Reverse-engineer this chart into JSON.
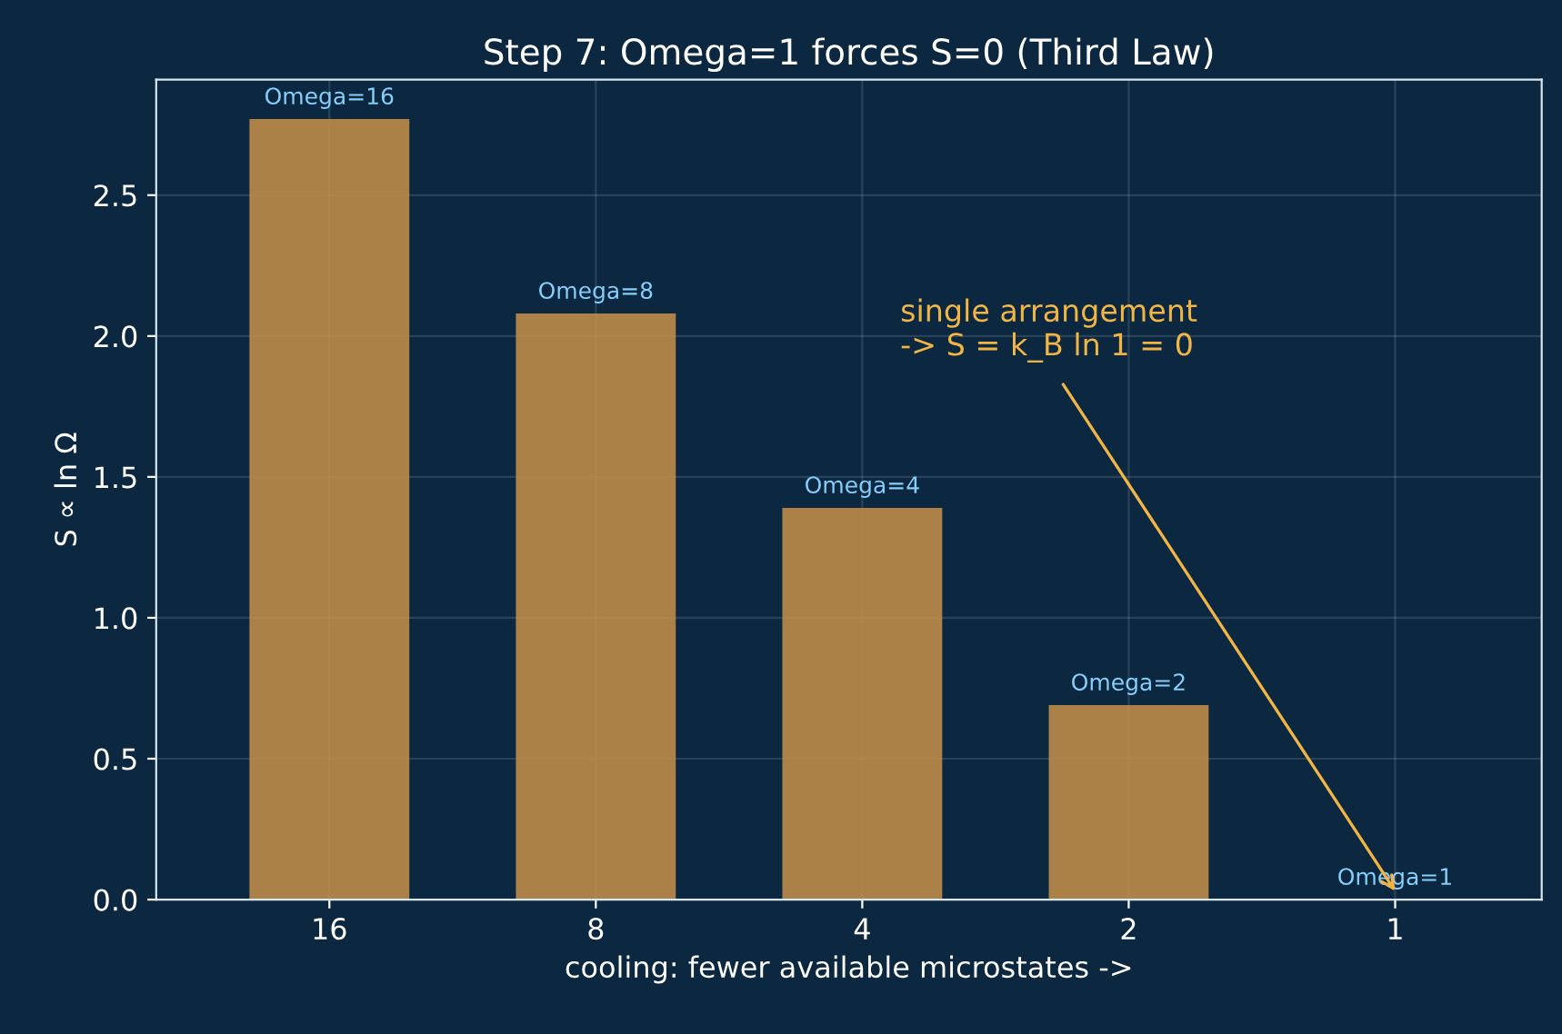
{
  "chart_data": {
    "type": "bar",
    "title": "Step 7: Omega=1 forces S=0 (Third Law)",
    "xlabel": "cooling: fewer available microstates ->",
    "ylabel": "S ∝ ln Ω",
    "categories": [
      "16",
      "8",
      "4",
      "2",
      "1"
    ],
    "series": [
      {
        "color": "#c8914a",
        "values": [
          2.77,
          2.08,
          1.39,
          0.69,
          0
        ]
      }
    ],
    "ylim": [
      0,
      2.91
    ],
    "yticks": [
      {
        "value": 0,
        "label": "0.0"
      },
      {
        "value": 0.5,
        "label": "0.5"
      },
      {
        "value": 1,
        "label": "1.0"
      },
      {
        "value": 1.5,
        "label": "1.5"
      },
      {
        "value": 2,
        "label": "2.0"
      },
      {
        "value": 2.5,
        "label": "2.5"
      }
    ],
    "grid": true,
    "legend": false,
    "annotations": [
      {
        "text": "Omega=16",
        "x": "16",
        "y": 2.77
      },
      {
        "text": "Omega=8",
        "x": "8",
        "y": 2.08
      },
      {
        "text": "Omega=4",
        "x": "4",
        "y": 1.39
      },
      {
        "text": "Omega=2",
        "x": "2",
        "y": 0.69
      },
      {
        "text": "Omega=1",
        "x": "1",
        "y": 0
      },
      {
        "text": "single arrangement\n-> S = k_B ln 1 = 0",
        "x": "1",
        "y": 0.03
      }
    ]
  }
}
